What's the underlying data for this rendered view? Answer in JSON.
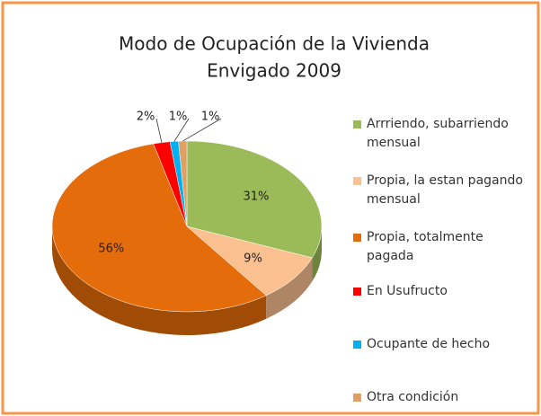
{
  "chart_data": {
    "type": "pie",
    "title": "Modo de Ocupación de la Vivienda",
    "subtitle": "Envigado 2009",
    "categories": [
      "Arrriendo, subarriendo mensual",
      "Propia, la estan pagando mensual",
      "Propia, totalmente pagada",
      "En Usufructo",
      "Ocupante de hecho",
      "Otra condición"
    ],
    "values": [
      31,
      9,
      56,
      2,
      1,
      1
    ],
    "value_labels": [
      "31%",
      "9%",
      "56%",
      "2%",
      "1%",
      "1%"
    ],
    "colors": [
      "#9bbb59",
      "#fac090",
      "#e46c0a",
      "#ff0000",
      "#00b0f0",
      "#e0a064"
    ],
    "legend": "right"
  }
}
